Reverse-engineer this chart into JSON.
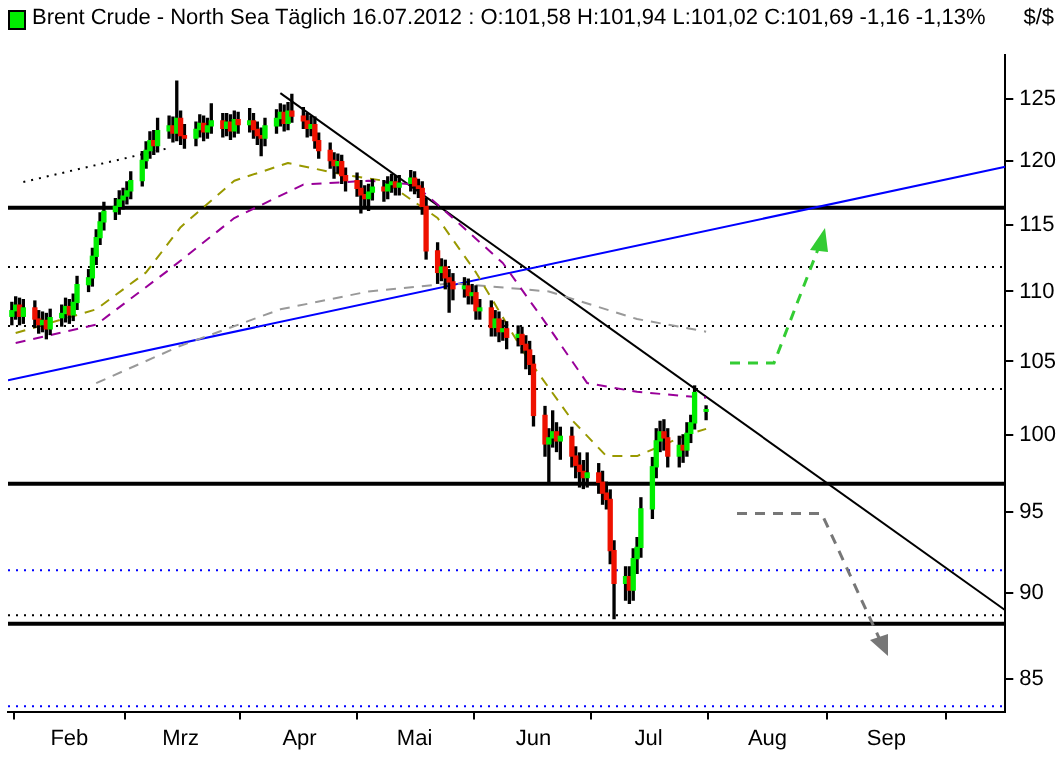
{
  "chart_data": {
    "type": "candlestick",
    "title": "Brent Crude - North Sea Täglich  16.07.2012 : O:101,58 H:101,94 L:101,02 C:101,69 -1,16 -1,13%",
    "ylabel": "$/$",
    "x": [
      "2012-01-17",
      "2012-01-18",
      "2012-01-19",
      "2012-01-20",
      "2012-01-23",
      "2012-01-24",
      "2012-01-25",
      "2012-01-26",
      "2012-01-27",
      "2012-01-30",
      "2012-01-31",
      "2012-02-01",
      "2012-02-02",
      "2012-02-03",
      "2012-02-06",
      "2012-02-07",
      "2012-02-08",
      "2012-02-09",
      "2012-02-10",
      "2012-02-13",
      "2012-02-14",
      "2012-02-15",
      "2012-02-16",
      "2012-02-17",
      "2012-02-20",
      "2012-02-21",
      "2012-02-22",
      "2012-02-23",
      "2012-02-24",
      "2012-02-27",
      "2012-02-28",
      "2012-02-29",
      "2012-03-01",
      "2012-03-02",
      "2012-03-05",
      "2012-03-06",
      "2012-03-07",
      "2012-03-08",
      "2012-03-09",
      "2012-03-12",
      "2012-03-13",
      "2012-03-14",
      "2012-03-15",
      "2012-03-16",
      "2012-03-19",
      "2012-03-20",
      "2012-03-21",
      "2012-03-22",
      "2012-03-23",
      "2012-03-26",
      "2012-03-27",
      "2012-03-28",
      "2012-03-29",
      "2012-03-30",
      "2012-04-02",
      "2012-04-03",
      "2012-04-04",
      "2012-04-05",
      "2012-04-06",
      "2012-04-09",
      "2012-04-10",
      "2012-04-11",
      "2012-04-12",
      "2012-04-13",
      "2012-04-16",
      "2012-04-17",
      "2012-04-18",
      "2012-04-19",
      "2012-04-20",
      "2012-04-23",
      "2012-04-24",
      "2012-04-25",
      "2012-04-26",
      "2012-04-27",
      "2012-04-30",
      "2012-05-01",
      "2012-05-02",
      "2012-05-03",
      "2012-05-04",
      "2012-05-07",
      "2012-05-08",
      "2012-05-09",
      "2012-05-10",
      "2012-05-11",
      "2012-05-14",
      "2012-05-15",
      "2012-05-16",
      "2012-05-17",
      "2012-05-18",
      "2012-05-21",
      "2012-05-22",
      "2012-05-23",
      "2012-05-24",
      "2012-05-25",
      "2012-05-28",
      "2012-05-29",
      "2012-05-30",
      "2012-05-31",
      "2012-06-01",
      "2012-06-04",
      "2012-06-05",
      "2012-06-06",
      "2012-06-07",
      "2012-06-08",
      "2012-06-11",
      "2012-06-12",
      "2012-06-13",
      "2012-06-14",
      "2012-06-15",
      "2012-06-18",
      "2012-06-19",
      "2012-06-20",
      "2012-06-21",
      "2012-06-22",
      "2012-06-25",
      "2012-06-26",
      "2012-06-27",
      "2012-06-28",
      "2012-06-29",
      "2012-07-02",
      "2012-07-03",
      "2012-07-04",
      "2012-07-05",
      "2012-07-06",
      "2012-07-09",
      "2012-07-10",
      "2012-07-11",
      "2012-07-12",
      "2012-07-13",
      "2012-07-16"
    ],
    "ohlc": [
      [
        108.2,
        109.2,
        107.6,
        108.6
      ],
      [
        108.6,
        109.6,
        108.0,
        109.0
      ],
      [
        109.0,
        109.5,
        107.6,
        108.2
      ],
      [
        108.2,
        109.4,
        107.7,
        108.8
      ],
      [
        108.8,
        109.3,
        107.4,
        108.0
      ],
      [
        108.0,
        108.6,
        107.0,
        107.6
      ],
      [
        107.6,
        108.5,
        107.1,
        107.9
      ],
      [
        107.9,
        108.4,
        106.6,
        107.3
      ],
      [
        107.3,
        108.7,
        106.9,
        108.1
      ],
      [
        108.1,
        109.0,
        107.5,
        108.4
      ],
      [
        108.4,
        109.5,
        107.8,
        108.9
      ],
      [
        108.9,
        109.4,
        107.7,
        108.3
      ],
      [
        108.3,
        109.8,
        107.9,
        109.2
      ],
      [
        109.2,
        111.1,
        108.7,
        110.5
      ],
      [
        110.5,
        111.6,
        110.0,
        111.0
      ],
      [
        111.0,
        113.2,
        110.4,
        112.6
      ],
      [
        112.6,
        114.6,
        112.0,
        114.0
      ],
      [
        114.0,
        115.9,
        113.5,
        115.2
      ],
      [
        115.2,
        116.7,
        114.6,
        116.0
      ],
      [
        116.0,
        117.0,
        115.4,
        116.4
      ],
      [
        116.4,
        117.6,
        115.8,
        116.9
      ],
      [
        116.9,
        117.8,
        116.2,
        117.2
      ],
      [
        117.2,
        118.3,
        116.6,
        117.6
      ],
      [
        117.6,
        119.1,
        117.0,
        118.4
      ],
      [
        118.4,
        120.7,
        118.0,
        120.0
      ],
      [
        120.0,
        121.5,
        119.4,
        120.8
      ],
      [
        120.8,
        122.3,
        120.2,
        121.6
      ],
      [
        121.6,
        122.4,
        120.5,
        121.2
      ],
      [
        121.2,
        123.4,
        120.7,
        122.4
      ],
      [
        122.4,
        123.6,
        121.8,
        122.8
      ],
      [
        122.8,
        123.5,
        121.5,
        122.2
      ],
      [
        122.2,
        126.5,
        121.6,
        123.4
      ],
      [
        123.4,
        124.0,
        121.3,
        122.0
      ],
      [
        122.0,
        122.9,
        121.0,
        121.8
      ],
      [
        121.8,
        123.1,
        121.2,
        122.5
      ],
      [
        122.5,
        123.7,
        121.9,
        123.0
      ],
      [
        123.0,
        123.6,
        121.6,
        122.3
      ],
      [
        122.3,
        123.4,
        121.8,
        122.8
      ],
      [
        122.8,
        124.6,
        122.2,
        123.2
      ],
      [
        123.2,
        123.8,
        121.9,
        122.6
      ],
      [
        122.6,
        123.8,
        122.0,
        123.1
      ],
      [
        123.1,
        123.7,
        121.7,
        122.4
      ],
      [
        122.4,
        124.0,
        121.9,
        123.3
      ],
      [
        123.3,
        123.9,
        122.2,
        122.9
      ],
      [
        122.9,
        124.2,
        122.3,
        123.2
      ],
      [
        123.2,
        123.8,
        121.8,
        122.5
      ],
      [
        122.5,
        123.1,
        121.3,
        122.0
      ],
      [
        122.0,
        122.6,
        120.4,
        121.8
      ],
      [
        121.8,
        123.4,
        121.2,
        122.8
      ],
      [
        122.8,
        124.1,
        122.2,
        123.4
      ],
      [
        123.4,
        124.6,
        122.8,
        123.9
      ],
      [
        123.9,
        124.5,
        122.4,
        123.0
      ],
      [
        123.0,
        124.7,
        122.5,
        124.0
      ],
      [
        124.0,
        125.4,
        123.1,
        123.6
      ],
      [
        123.6,
        124.3,
        122.6,
        123.2
      ],
      [
        123.2,
        123.8,
        121.9,
        122.6
      ],
      [
        122.6,
        123.6,
        122.0,
        122.9
      ],
      [
        122.9,
        123.5,
        121.0,
        121.6
      ],
      [
        121.6,
        122.2,
        120.2,
        120.8
      ],
      [
        120.8,
        121.4,
        119.4,
        120.0
      ],
      [
        120.0,
        120.6,
        118.6,
        119.6
      ],
      [
        119.6,
        120.5,
        119.0,
        119.9
      ],
      [
        119.9,
        120.4,
        118.2,
        118.8
      ],
      [
        118.8,
        119.4,
        117.6,
        118.4
      ],
      [
        118.4,
        119.0,
        117.2,
        117.8
      ],
      [
        117.8,
        118.4,
        115.9,
        117.3
      ],
      [
        117.3,
        118.0,
        116.4,
        117.0
      ],
      [
        117.0,
        118.1,
        116.1,
        117.5
      ],
      [
        117.5,
        118.5,
        116.9,
        117.9
      ],
      [
        117.9,
        118.4,
        116.8,
        117.6
      ],
      [
        117.6,
        118.7,
        117.0,
        118.1
      ],
      [
        118.1,
        118.9,
        117.5,
        118.3
      ],
      [
        118.3,
        118.8,
        117.3,
        117.9
      ],
      [
        117.9,
        118.8,
        117.3,
        118.2
      ],
      [
        118.2,
        119.2,
        117.6,
        118.6
      ],
      [
        118.6,
        119.1,
        117.4,
        118.0
      ],
      [
        118.0,
        118.5,
        117.1,
        117.8
      ],
      [
        117.8,
        118.3,
        115.8,
        116.4
      ],
      [
        116.4,
        117.0,
        112.4,
        113.0
      ],
      [
        113.0,
        113.6,
        110.6,
        111.4
      ],
      [
        111.4,
        112.4,
        110.8,
        111.8
      ],
      [
        111.8,
        112.3,
        110.2,
        111.0
      ],
      [
        111.0,
        111.6,
        108.5,
        110.7
      ],
      [
        110.7,
        111.3,
        109.4,
        110.2
      ],
      [
        110.2,
        111.0,
        109.6,
        110.4
      ],
      [
        110.4,
        110.9,
        109.1,
        109.7
      ],
      [
        109.7,
        110.5,
        109.1,
        109.9
      ],
      [
        109.9,
        110.4,
        108.0,
        108.6
      ],
      [
        108.6,
        109.4,
        108.0,
        108.8
      ],
      [
        108.8,
        109.3,
        106.8,
        107.4
      ],
      [
        107.4,
        108.6,
        106.8,
        108.0
      ],
      [
        108.0,
        108.5,
        106.4,
        107.1
      ],
      [
        107.1,
        107.9,
        106.5,
        107.3
      ],
      [
        107.3,
        107.8,
        105.9,
        106.7
      ],
      [
        106.7,
        107.5,
        106.1,
        106.9
      ],
      [
        106.9,
        107.4,
        105.6,
        106.2
      ],
      [
        106.2,
        106.8,
        104.5,
        105.8
      ],
      [
        105.8,
        106.4,
        104.1,
        104.8
      ],
      [
        104.8,
        105.4,
        100.6,
        101.3
      ],
      [
        101.3,
        101.9,
        98.6,
        99.4
      ],
      [
        99.4,
        100.4,
        96.9,
        99.8
      ],
      [
        99.8,
        101.6,
        99.2,
        100.2
      ],
      [
        100.2,
        100.8,
        98.9,
        99.6
      ],
      [
        99.6,
        100.5,
        98.4,
        99.9
      ],
      [
        99.9,
        100.5,
        97.9,
        98.6
      ],
      [
        98.6,
        99.2,
        97.2,
        98.0
      ],
      [
        98.0,
        98.8,
        96.6,
        97.6
      ],
      [
        97.6,
        98.3,
        96.5,
        97.2
      ],
      [
        97.2,
        98.8,
        96.6,
        97.5
      ],
      [
        97.5,
        98.1,
        96.2,
        96.9
      ],
      [
        96.9,
        97.6,
        95.5,
        96.2
      ],
      [
        96.2,
        96.9,
        95.2,
        95.8
      ],
      [
        95.8,
        96.4,
        91.8,
        92.6
      ],
      [
        92.6,
        93.2,
        88.5,
        90.6
      ],
      [
        90.6,
        91.6,
        89.6,
        91.0
      ],
      [
        91.0,
        91.6,
        89.4,
        90.2
      ],
      [
        90.2,
        92.7,
        89.6,
        92.1
      ],
      [
        92.1,
        93.4,
        91.2,
        92.8
      ],
      [
        92.8,
        95.9,
        92.2,
        95.2
      ],
      [
        95.2,
        98.5,
        94.6,
        97.9
      ],
      [
        97.9,
        100.4,
        97.2,
        99.6
      ],
      [
        99.6,
        100.9,
        98.9,
        100.2
      ],
      [
        100.2,
        101.0,
        99.0,
        99.8
      ],
      [
        99.8,
        100.4,
        97.9,
        98.6
      ],
      [
        98.6,
        99.9,
        97.9,
        99.3
      ],
      [
        99.3,
        100.0,
        98.2,
        99.0
      ],
      [
        99.0,
        100.8,
        98.6,
        100.1
      ],
      [
        100.1,
        101.3,
        99.5,
        100.8
      ],
      [
        100.8,
        103.3,
        100.4,
        102.85
      ],
      [
        101.58,
        101.94,
        101.02,
        101.69
      ]
    ],
    "colors": [
      "#00ee00",
      "#00ee00",
      "#ee1100",
      "#00ee00",
      "#ee1100",
      "#ee1100",
      "#00ee00",
      "#ee1100",
      "#00ee00",
      "#00ee00",
      "#00ee00",
      "#ee1100",
      "#00ee00",
      "#00ee00",
      "#00ee00",
      "#00ee00",
      "#00ee00",
      "#00ee00",
      "#00ee00",
      "#00ee00",
      "#00ee00",
      "#00ee00",
      "#00ee00",
      "#00ee00",
      "#00ee00",
      "#00ee00",
      "#00ee00",
      "#ee1100",
      "#00ee00",
      "#00ee00",
      "#ee1100",
      "#00ee00",
      "#ee1100",
      "#ee1100",
      "#00ee00",
      "#00ee00",
      "#ee1100",
      "#00ee00",
      "#00ee00",
      "#ee1100",
      "#00ee00",
      "#ee1100",
      "#00ee00",
      "#ee1100",
      "#00ee00",
      "#ee1100",
      "#ee1100",
      "#ee1100",
      "#00ee00",
      "#00ee00",
      "#00ee00",
      "#ee1100",
      "#00ee00",
      "#ee1100",
      "#ee1100",
      "#ee1100",
      "#00ee00",
      "#ee1100",
      "#ee1100",
      "#ee1100",
      "#ee1100",
      "#00ee00",
      "#ee1100",
      "#ee1100",
      "#ee1100",
      "#ee1100",
      "#ee1100",
      "#00ee00",
      "#00ee00",
      "#ee1100",
      "#00ee00",
      "#00ee00",
      "#ee1100",
      "#00ee00",
      "#00ee00",
      "#ee1100",
      "#ee1100",
      "#ee1100",
      "#ee1100",
      "#ee1100",
      "#00ee00",
      "#ee1100",
      "#ee1100",
      "#ee1100",
      "#00ee00",
      "#ee1100",
      "#00ee00",
      "#ee1100",
      "#00ee00",
      "#ee1100",
      "#00ee00",
      "#ee1100",
      "#00ee00",
      "#ee1100",
      "#00ee00",
      "#ee1100",
      "#ee1100",
      "#ee1100",
      "#ee1100",
      "#ee1100",
      "#00ee00",
      "#00ee00",
      "#ee1100",
      "#00ee00",
      "#ee1100",
      "#ee1100",
      "#ee1100",
      "#ee1100",
      "#00ee00",
      "#ee1100",
      "#ee1100",
      "#ee1100",
      "#ee1100",
      "#ee1100",
      "#00ee00",
      "#ee1100",
      "#00ee00",
      "#00ee00",
      "#00ee00",
      "#00ee00",
      "#00ee00",
      "#00ee00",
      "#ee1100",
      "#ee1100",
      "#00ee00",
      "#ee1100",
      "#00ee00",
      "#00ee00",
      "#00ee00",
      "#00ee00"
    ],
    "series": [
      {
        "type": "line",
        "color": "#999900",
        "line_style": "dashed",
        "x": [
          "2012-01-18",
          "2012-02-08",
          "2012-02-21",
          "2012-03-01",
          "2012-03-15",
          "2012-03-29",
          "2012-04-12",
          "2012-04-23",
          "2012-05-07",
          "2012-05-17",
          "2012-05-30",
          "2012-06-11",
          "2012-06-20",
          "2012-06-28",
          "2012-07-11",
          "2012-07-16"
        ],
        "values": [
          107.0,
          108.7,
          111.4,
          114.8,
          118.4,
          119.8,
          118.9,
          118.4,
          115.5,
          111.4,
          105.4,
          101.0,
          98.6,
          98.6,
          100.0,
          100.4
        ]
      },
      {
        "type": "line",
        "color": "#990099",
        "line_style": "dashed",
        "x": [
          "2012-01-18",
          "2012-02-08",
          "2012-02-27",
          "2012-03-15",
          "2012-04-02",
          "2012-04-19",
          "2012-05-01",
          "2012-05-11",
          "2012-05-24",
          "2012-06-05",
          "2012-06-15",
          "2012-06-28",
          "2012-07-11",
          "2012-07-16"
        ],
        "values": [
          106.3,
          107.6,
          111.6,
          115.5,
          118.1,
          118.4,
          118.1,
          115.5,
          112.1,
          107.4,
          103.5,
          102.9,
          102.6,
          102.5
        ]
      },
      {
        "type": "line",
        "color": "#999999",
        "line_style": "dashed",
        "x": [
          "2012-02-08",
          "2012-03-01",
          "2012-03-27",
          "2012-04-19",
          "2012-05-11",
          "2012-06-05",
          "2012-06-28",
          "2012-07-16"
        ],
        "values": [
          103.5,
          106.1,
          108.7,
          110.0,
          110.6,
          110.0,
          108.0,
          107.1
        ]
      },
      {
        "type": "line",
        "color": "#0000ff",
        "line_style": "solid",
        "x": [
          "2012-01-16",
          "2012-10-02"
        ],
        "values": [
          103.7,
          119.5
        ]
      },
      {
        "type": "line",
        "color": "#000000",
        "line_style": "solid",
        "x": [
          "2012-03-27",
          "2012-10-02"
        ],
        "values": [
          125.5,
          89.0
        ]
      },
      {
        "type": "line",
        "color": "#000000",
        "line_style": "dotted",
        "x": [
          "2012-01-20",
          "2012-02-27"
        ],
        "values": [
          118.3,
          121.0
        ]
      }
    ],
    "ref_lines": [
      {
        "axis": "y",
        "value": 116.3,
        "color": "#000000",
        "line_style": "solid"
      },
      {
        "axis": "y",
        "value": 96.8,
        "color": "#000000",
        "line_style": "solid"
      },
      {
        "axis": "y",
        "value": 88.2,
        "color": "#000000",
        "line_style": "solid"
      },
      {
        "axis": "y",
        "value": 111.8,
        "color": "#000000",
        "line_style": "dotted"
      },
      {
        "axis": "y",
        "value": 107.5,
        "color": "#000000",
        "line_style": "dotted"
      },
      {
        "axis": "y",
        "value": 103.1,
        "color": "#000000",
        "line_style": "dotted"
      },
      {
        "axis": "y",
        "value": 91.4,
        "color": "#0000ff",
        "line_style": "dotted"
      },
      {
        "axis": "y",
        "value": 88.7,
        "color": "#000000",
        "line_style": "dotted"
      },
      {
        "axis": "y",
        "value": 83.5,
        "color": "#0000ff",
        "line_style": "dotted"
      }
    ],
    "xlim": [
      "2012-01-16",
      "2012-10-02"
    ],
    "xticks": [
      {
        "value": "2012-02-01",
        "label": "Feb"
      },
      {
        "value": "2012-03-01",
        "label": "Mrz"
      },
      {
        "value": "2012-04-01",
        "label": "Apr"
      },
      {
        "value": "2012-05-01",
        "label": "Mai"
      },
      {
        "value": "2012-06-01",
        "label": "Jun"
      },
      {
        "value": "2012-07-01",
        "label": "Jul"
      },
      {
        "value": "2012-08-01",
        "label": "Aug"
      },
      {
        "value": "2012-09-01",
        "label": "Sep"
      }
    ],
    "ylim": [
      83.2,
      128.7
    ],
    "yticks": [
      85,
      90,
      95,
      100,
      105,
      110,
      115,
      120,
      125
    ],
    "log": true,
    "grid": false,
    "legend": false
  }
}
